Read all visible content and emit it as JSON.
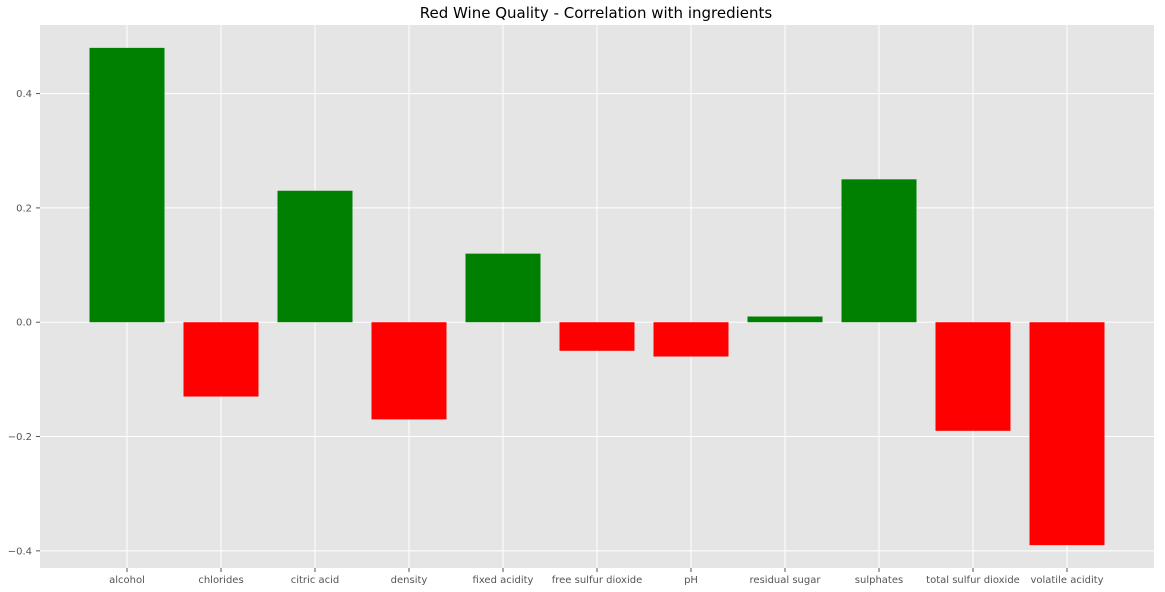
{
  "chart_data": {
    "type": "bar",
    "title": "Red Wine Quality - Correlation with ingredients",
    "xlabel": "",
    "ylabel": "",
    "categories": [
      "alcohol",
      "chlorides",
      "citric acid",
      "density",
      "fixed acidity",
      "free sulfur dioxide",
      "pH",
      "residual sugar",
      "sulphates",
      "total sulfur dioxide",
      "volatile acidity"
    ],
    "values": [
      0.48,
      -0.13,
      0.23,
      -0.17,
      0.12,
      -0.05,
      -0.06,
      0.01,
      0.25,
      -0.19,
      -0.39
    ],
    "ylim": [
      -0.43,
      0.52
    ],
    "yticks": [
      -0.4,
      -0.2,
      0.0,
      0.2,
      0.4
    ],
    "ytick_labels": [
      "−0.4",
      "−0.2",
      "0.0",
      "0.2",
      "0.4"
    ],
    "grid": true,
    "colors": {
      "positive": "#008000",
      "negative": "#ff0000",
      "background": "#e5e5e5",
      "grid": "#ffffff",
      "tick_text": "#555555"
    }
  }
}
